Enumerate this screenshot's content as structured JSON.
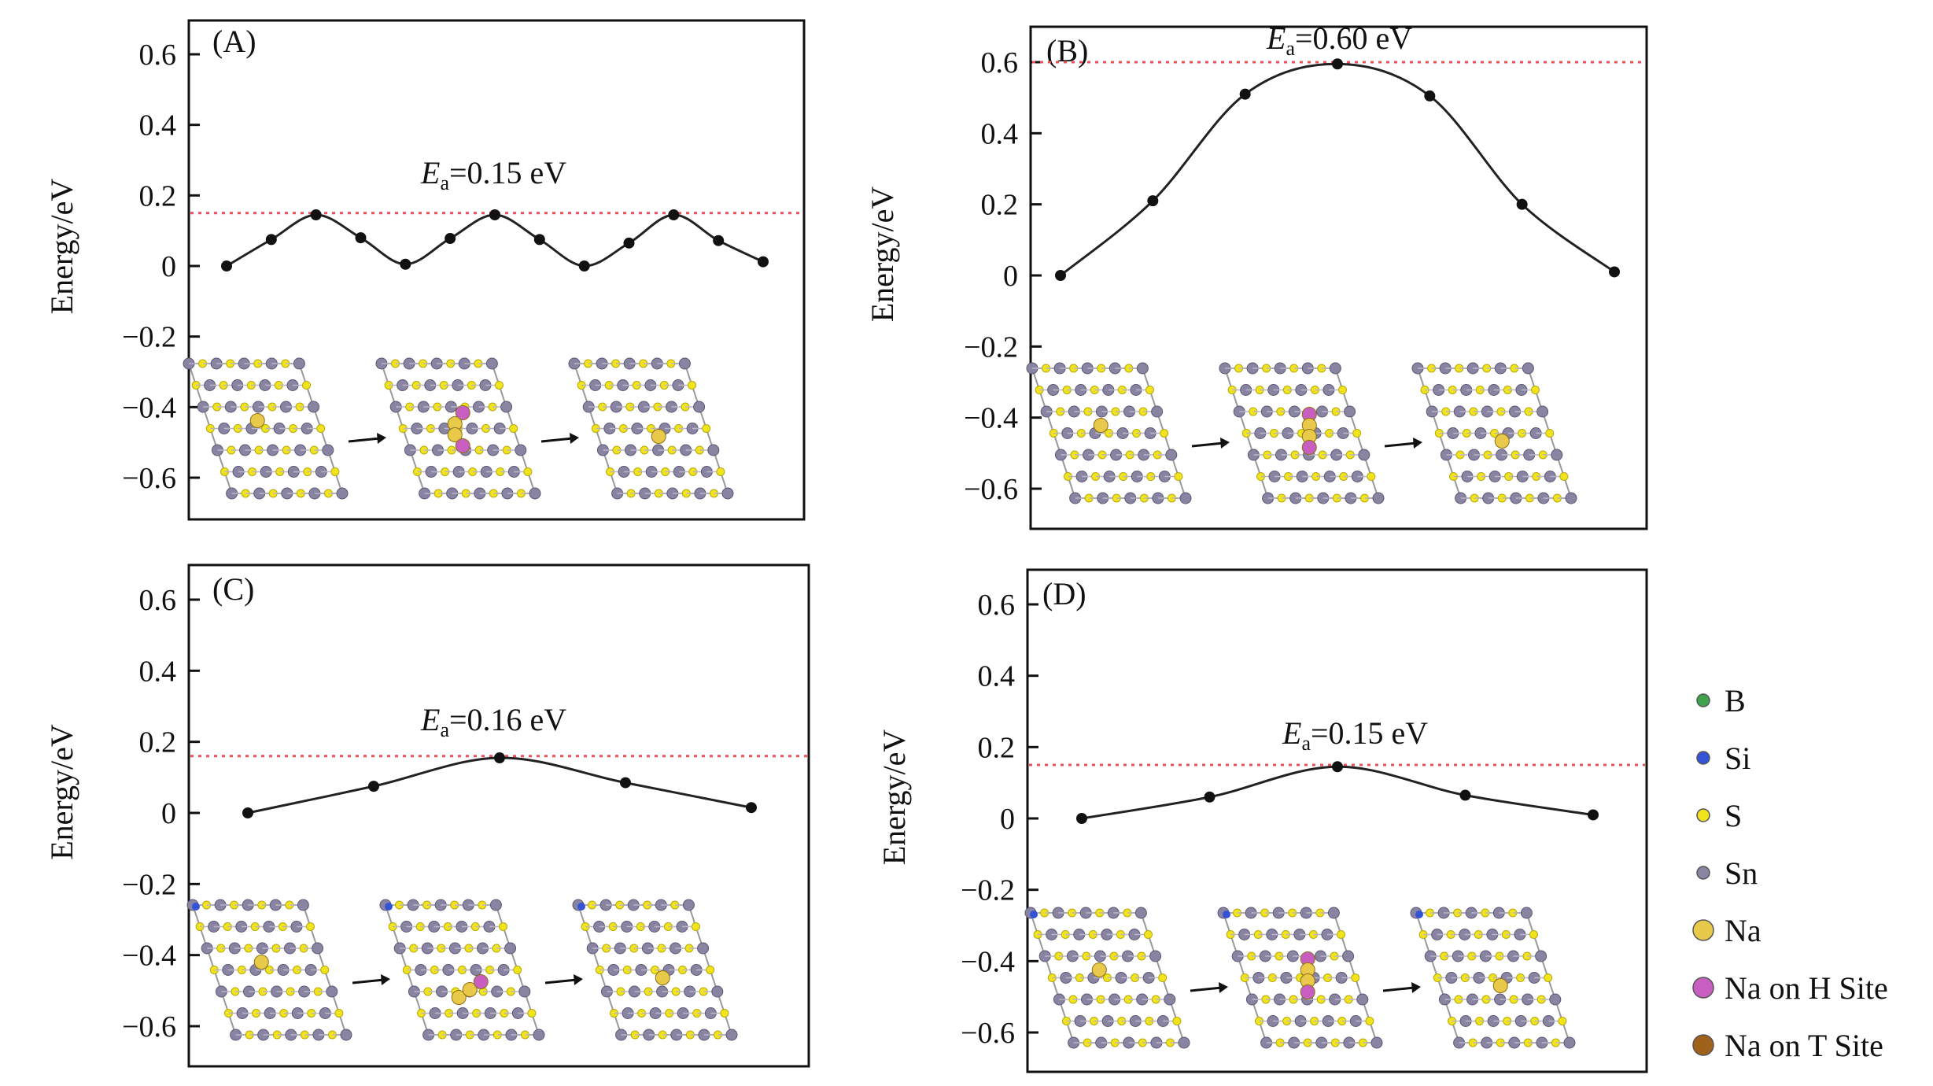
{
  "figure": {
    "legend_title": "",
    "legend": [
      {
        "label": "B",
        "color": "#3fa34d",
        "kind": "small"
      },
      {
        "label": "Si",
        "color": "#3553d6",
        "kind": "small"
      },
      {
        "label": "S",
        "color": "#f2e41c",
        "kind": "small"
      },
      {
        "label": "Sn",
        "color": "#8a84a3",
        "kind": "small"
      },
      {
        "label": "Na",
        "color": "#e8c94a",
        "kind": "large"
      },
      {
        "label": "Na on H Site",
        "color": "#c85fc0",
        "kind": "large"
      },
      {
        "label": "Na on T Site",
        "color": "#a0621a",
        "kind": "large"
      }
    ]
  },
  "chart_data": [
    {
      "type": "line",
      "panel_label": "(A)",
      "ylabel": "Energy/eV",
      "yticks": [
        "0.6",
        "0.4",
        "0.2",
        "0",
        "−0.2",
        "−0.4",
        "−0.6"
      ],
      "ylim": [
        -0.7,
        0.7
      ],
      "x": [
        0,
        1,
        2,
        3,
        4,
        5,
        6,
        7,
        8,
        9,
        10,
        11,
        12
      ],
      "values": [
        0.0,
        0.075,
        0.145,
        0.08,
        0.005,
        0.078,
        0.145,
        0.075,
        0.0,
        0.065,
        0.145,
        0.072,
        0.012
      ],
      "barrier": 0.15,
      "ea_symbol": "E",
      "ea_sub": "a",
      "ea_text": "=0.15 eV",
      "inset": "hops"
    },
    {
      "type": "line",
      "panel_label": "(B)",
      "ylabel": "Energy/eV",
      "yticks": [
        "0.6",
        "0.4",
        "0.2",
        "0",
        "−0.2",
        "−0.4",
        "−0.6"
      ],
      "ylim": [
        -0.7,
        0.7
      ],
      "x": [
        0,
        1,
        2,
        3,
        4,
        5,
        6
      ],
      "values": [
        0.0,
        0.21,
        0.51,
        0.595,
        0.505,
        0.2,
        0.01
      ],
      "barrier": 0.6,
      "ea_symbol": "E",
      "ea_sub": "a",
      "ea_text": "=0.60 eV",
      "inset": "vertical"
    },
    {
      "type": "line",
      "panel_label": "(C)",
      "ylabel": "Energy/eV",
      "yticks": [
        "0.6",
        "0.4",
        "0.2",
        "0",
        "−0.2",
        "−0.4",
        "−0.6"
      ],
      "ylim": [
        -0.7,
        0.7
      ],
      "x": [
        0,
        1,
        2,
        3,
        4
      ],
      "values": [
        0.0,
        0.075,
        0.155,
        0.085,
        0.015
      ],
      "barrier": 0.16,
      "ea_symbol": "E",
      "ea_sub": "a",
      "ea_text": "=0.16 eV",
      "inset": "diagonal"
    },
    {
      "type": "line",
      "panel_label": "(D)",
      "ylabel": "Energy/eV",
      "yticks": [
        "0.6",
        "0.4",
        "0.2",
        "0",
        "−0.2",
        "−0.4",
        "−0.6"
      ],
      "ylim": [
        -0.7,
        0.7
      ],
      "x": [
        0,
        1,
        2,
        3,
        4
      ],
      "values": [
        0.0,
        0.06,
        0.145,
        0.065,
        0.01
      ],
      "barrier": 0.15,
      "ea_symbol": "E",
      "ea_sub": "a",
      "ea_text": "=0.15 eV",
      "inset": "vertical"
    }
  ]
}
